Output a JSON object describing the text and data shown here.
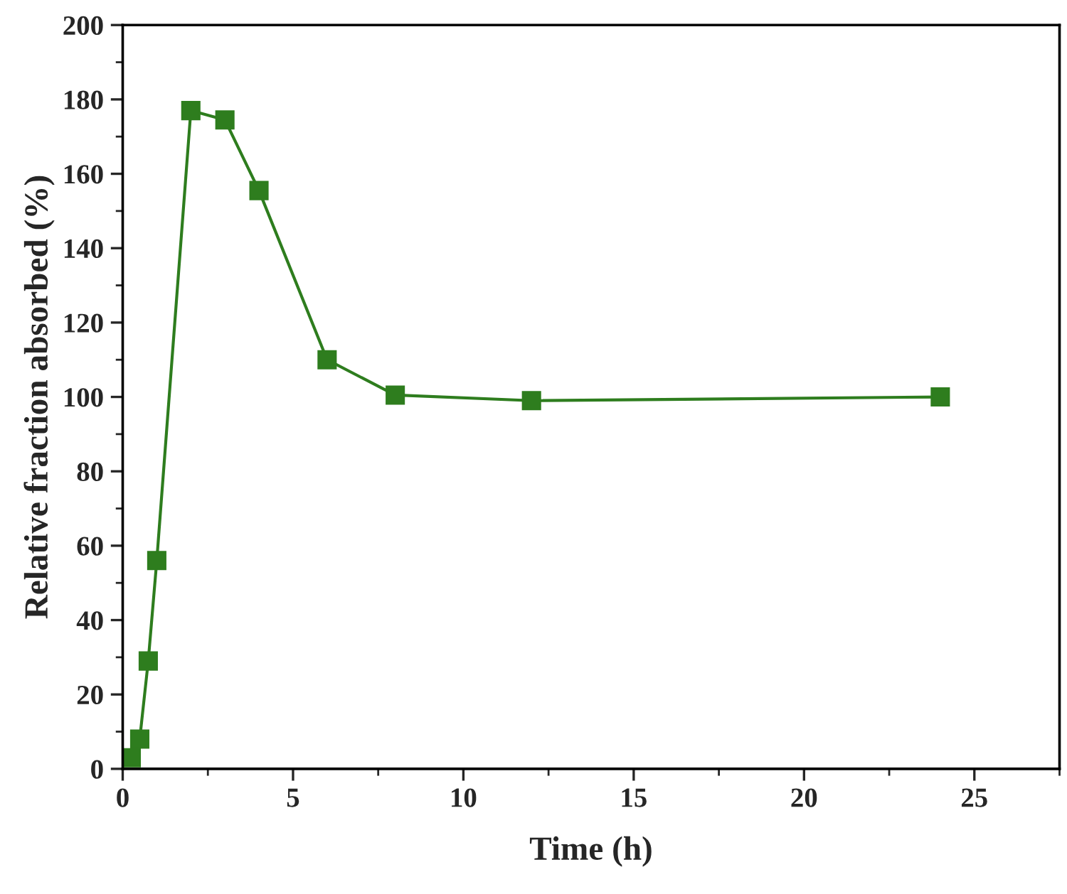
{
  "chart_data": {
    "type": "line",
    "xlabel": "Time (h)",
    "ylabel": "Relative fraction absorbed (%)",
    "x": [
      0.25,
      0.5,
      0.75,
      1,
      2,
      3,
      4,
      6,
      8,
      12,
      24
    ],
    "series": [
      {
        "color": "#2e7d1e",
        "values": [
          3,
          8,
          29,
          56,
          177,
          174.5,
          155.5,
          110,
          100.5,
          99,
          100
        ]
      }
    ],
    "marker": "square",
    "line_style": "solid",
    "grid": false,
    "legend": false,
    "xlim": [
      0,
      27.5
    ],
    "ylim": [
      0,
      200
    ],
    "xticks": [
      0,
      5,
      10,
      15,
      20,
      25
    ],
    "yticks": [
      0,
      20,
      40,
      60,
      80,
      100,
      120,
      140,
      160,
      180,
      200
    ]
  }
}
